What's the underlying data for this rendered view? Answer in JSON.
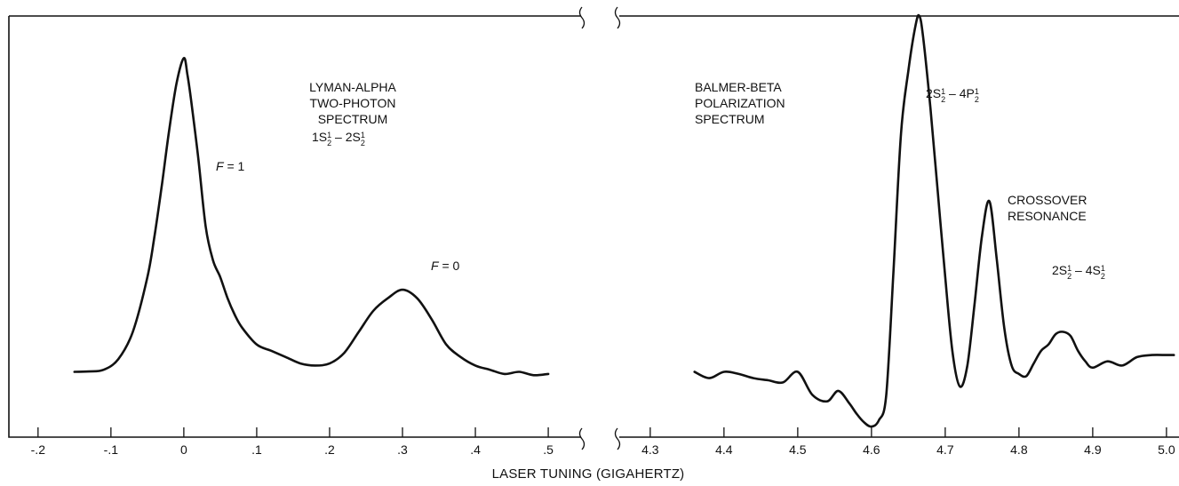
{
  "chart_data": [
    {
      "type": "line",
      "panel": "left",
      "x_ticks": [
        "-.2",
        "-.1",
        "0",
        ".1",
        ".2",
        ".3",
        ".4",
        ".5"
      ],
      "x_tick_values": [
        -0.2,
        -0.1,
        0,
        0.1,
        0.2,
        0.3,
        0.4,
        0.5
      ],
      "xlim": [
        -0.24,
        0.545
      ],
      "ylim": [
        0,
        1
      ],
      "annotations": {
        "title_lines": [
          "LYMAN-ALPHA",
          "TWO-PHOTON",
          "SPECTRUM"
        ],
        "transition": {
          "a": "1S",
          "a_sub": "1",
          "a_den": "2",
          "sep": " – ",
          "b": "2S",
          "b_sub": "1",
          "b_den": "2"
        },
        "peak1": {
          "var": "F",
          "rest": " = 1"
        },
        "peak2": {
          "var": "F",
          "rest": " = 0"
        }
      },
      "series": [
        {
          "x": [
            -0.15,
            -0.13,
            -0.11,
            -0.09,
            -0.07,
            -0.05,
            -0.04,
            -0.03,
            -0.02,
            -0.01,
            0.0,
            0.005,
            0.01,
            0.02,
            0.03,
            0.04,
            0.05,
            0.06,
            0.07,
            0.08,
            0.1,
            0.12,
            0.14,
            0.16,
            0.18,
            0.2,
            0.22,
            0.24,
            0.26,
            0.28,
            0.3,
            0.32,
            0.34,
            0.36,
            0.38,
            0.4,
            0.42,
            0.44,
            0.46,
            0.48,
            0.5
          ],
          "y": [
            0.155,
            0.156,
            0.16,
            0.185,
            0.25,
            0.38,
            0.48,
            0.6,
            0.73,
            0.84,
            0.9,
            0.86,
            0.8,
            0.66,
            0.5,
            0.42,
            0.38,
            0.33,
            0.29,
            0.26,
            0.22,
            0.205,
            0.19,
            0.175,
            0.17,
            0.175,
            0.2,
            0.25,
            0.3,
            0.33,
            0.35,
            0.33,
            0.28,
            0.22,
            0.19,
            0.17,
            0.16,
            0.15,
            0.155,
            0.147,
            0.15
          ]
        }
      ]
    },
    {
      "type": "line",
      "panel": "right",
      "x_ticks": [
        "4.3",
        "4.4",
        "4.5",
        "4.6",
        "4.7",
        "4.8",
        "4.9",
        "5.0"
      ],
      "x_tick_values": [
        4.3,
        4.4,
        4.5,
        4.6,
        4.7,
        4.8,
        4.9,
        5.0
      ],
      "xlim": [
        4.258,
        5.017
      ],
      "ylim": [
        0,
        1
      ],
      "annotations": {
        "title_lines": [
          "BALMER-BETA",
          "POLARIZATION",
          "SPECTRUM"
        ],
        "transition1": {
          "a": "2S",
          "a_sub": "1",
          "a_den": "2",
          "sep": " – ",
          "b": "4P",
          "b_sub": "1",
          "b_den": "2"
        },
        "crossover_lines": [
          "CROSSOVER",
          "RESONANCE"
        ],
        "transition2": {
          "a": "2S",
          "a_sub": "1",
          "a_den": "2",
          "sep": " – ",
          "b": "4S",
          "b_sub": "1",
          "b_den": "2"
        }
      },
      "series": [
        {
          "x": [
            4.36,
            4.38,
            4.4,
            4.42,
            4.44,
            4.46,
            4.48,
            4.5,
            4.52,
            4.54,
            4.555,
            4.57,
            4.58,
            4.59,
            4.6,
            4.61,
            4.62,
            4.63,
            4.64,
            4.65,
            4.66,
            4.665,
            4.67,
            4.68,
            4.69,
            4.7,
            4.71,
            4.72,
            4.73,
            4.74,
            4.75,
            4.76,
            4.77,
            4.78,
            4.79,
            4.8,
            4.81,
            4.82,
            4.83,
            4.84,
            4.85,
            4.86,
            4.87,
            4.88,
            4.89,
            4.9,
            4.92,
            4.94,
            4.96,
            4.98,
            5.0,
            5.01
          ],
          "y": [
            0.155,
            0.14,
            0.155,
            0.15,
            0.14,
            0.135,
            0.13,
            0.155,
            0.1,
            0.085,
            0.11,
            0.08,
            0.055,
            0.035,
            0.025,
            0.04,
            0.1,
            0.4,
            0.72,
            0.87,
            0.98,
            1.0,
            0.95,
            0.78,
            0.58,
            0.38,
            0.2,
            0.12,
            0.17,
            0.32,
            0.48,
            0.56,
            0.42,
            0.26,
            0.17,
            0.15,
            0.145,
            0.175,
            0.205,
            0.22,
            0.245,
            0.25,
            0.24,
            0.205,
            0.18,
            0.165,
            0.18,
            0.17,
            0.19,
            0.195,
            0.195,
            0.195
          ]
        }
      ]
    }
  ],
  "xlabel": "LASER TUNING (GIGAHERTZ)"
}
